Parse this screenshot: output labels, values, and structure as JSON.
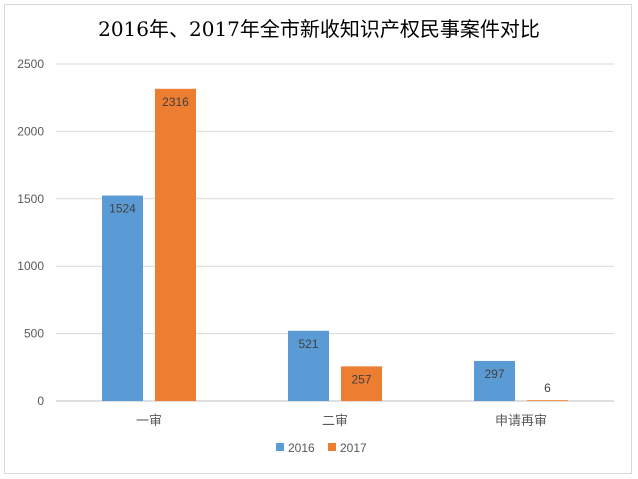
{
  "chart_data": {
    "type": "bar",
    "title": "2016年、2017年全市新收知识产权民事案件对比",
    "categories": [
      "一审",
      "二审",
      "申请再审"
    ],
    "series": [
      {
        "name": "2016",
        "color": "#5b9bd5",
        "values": [
          1524,
          521,
          297
        ]
      },
      {
        "name": "2017",
        "color": "#ed7d31",
        "values": [
          2316,
          257,
          6
        ]
      }
    ],
    "ylim": [
      0,
      2500
    ],
    "yticks": [
      0,
      500,
      1000,
      1500,
      2000,
      2500
    ],
    "grid": true,
    "legend": "bottom"
  }
}
